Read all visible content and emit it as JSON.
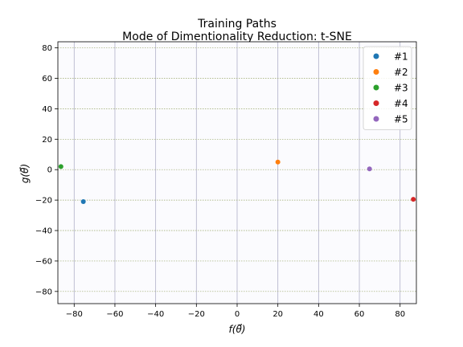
{
  "chart_data": {
    "type": "scatter",
    "title": "Training Paths",
    "subtitle": "Mode of Dimentionality Reduction: t-SNE",
    "xlabel": "f(θ⃗)",
    "ylabel": "g(θ⃗)",
    "xlim": [
      -88,
      88
    ],
    "ylim": [
      -88,
      84
    ],
    "xticks": [
      -80,
      -60,
      -40,
      -20,
      0,
      20,
      40,
      60,
      80
    ],
    "yticks": [
      -80,
      -60,
      -40,
      -20,
      0,
      20,
      40,
      60,
      80
    ],
    "xtick_labels": [
      "−80",
      "−60",
      "−40",
      "−20",
      "0",
      "20",
      "40",
      "60",
      "80"
    ],
    "ytick_labels": [
      "−80",
      "−60",
      "−40",
      "−20",
      "0",
      "20",
      "40",
      "60",
      "80"
    ],
    "grid": true,
    "legend_position": "top-right",
    "series": [
      {
        "name": "#1",
        "color": "#1f77b4",
        "x": [
          -75.5
        ],
        "y": [
          -21
        ]
      },
      {
        "name": "#2",
        "color": "#ff7f0e",
        "x": [
          20
        ],
        "y": [
          5
        ]
      },
      {
        "name": "#3",
        "color": "#2ca02c",
        "x": [
          -86.5
        ],
        "y": [
          2
        ]
      },
      {
        "name": "#4",
        "color": "#d62728",
        "x": [
          86.5
        ],
        "y": [
          -19.5
        ]
      },
      {
        "name": "#5",
        "color": "#9467bd",
        "x": [
          65
        ],
        "y": [
          0.5
        ]
      }
    ]
  }
}
